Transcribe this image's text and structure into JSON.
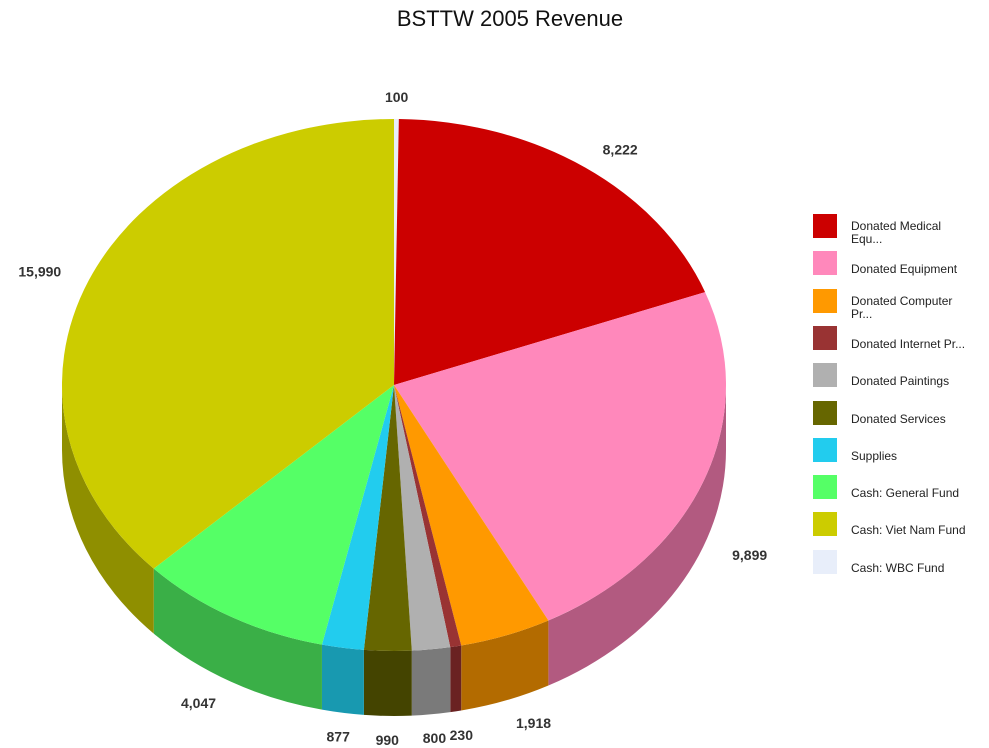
{
  "chart_data": {
    "type": "pie",
    "title": "BSTTW 2005 Revenue",
    "slices": [
      {
        "label": "Cash: WBC Fund",
        "value": 100,
        "value_label": "100",
        "color": "#e8eefa",
        "side_color": "#b8bccb"
      },
      {
        "label": "Donated Medical\nEqu...",
        "value": 8222,
        "value_label": "8,222",
        "color": "#cc0000",
        "side_color": "#8e0000"
      },
      {
        "label": "Donated Equipment",
        "value": 9899,
        "value_label": "9,899",
        "color": "#ff88bb",
        "side_color": "#b25a80"
      },
      {
        "label": "Donated Computer\nPr...",
        "value": 1918,
        "value_label": "1,918",
        "color": "#ff9900",
        "side_color": "#b36b00"
      },
      {
        "label": "Donated Internet Pr...",
        "value": 230,
        "value_label": "230",
        "color": "#993333",
        "side_color": "#6a2222"
      },
      {
        "label": "Donated Paintings",
        "value": 800,
        "value_label": "800",
        "color": "#b0b0b0",
        "side_color": "#7a7a7a"
      },
      {
        "label": "Donated Services",
        "value": 990,
        "value_label": "990",
        "color": "#666600",
        "side_color": "#444400"
      },
      {
        "label": "Supplies",
        "value": 877,
        "value_label": "877",
        "color": "#22ccee",
        "side_color": "#1899b0"
      },
      {
        "label": "Cash: General Fund",
        "value": 4047,
        "value_label": "4,047",
        "color": "#55ff66",
        "side_color": "#3aaf47"
      },
      {
        "label": "Cash: Viet Nam Fund",
        "value": 15990,
        "value_label": "15,990",
        "color": "#cccc00",
        "side_color": "#8f8f00"
      }
    ],
    "legend_order": [
      1,
      2,
      3,
      4,
      5,
      6,
      7,
      8,
      9,
      0
    ],
    "legend_position": "right",
    "three_d": true
  }
}
